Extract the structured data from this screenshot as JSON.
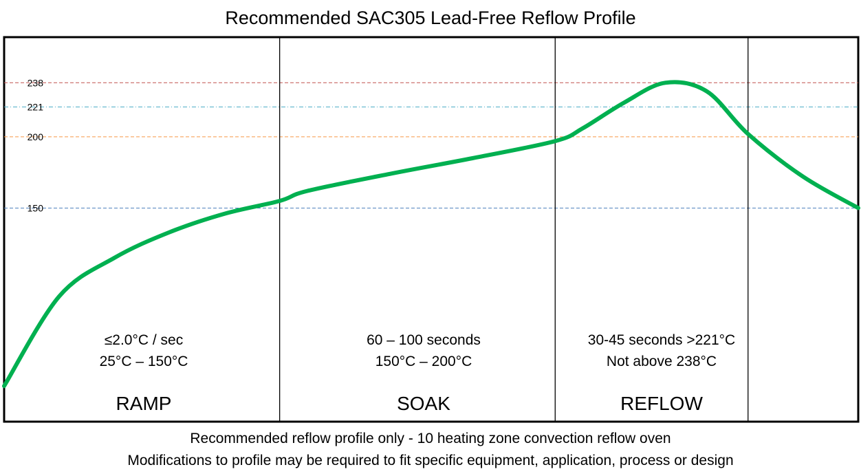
{
  "chart_data": {
    "type": "line",
    "title": "Recommended SAC305 Lead-Free Reflow Profile",
    "xlabel": "",
    "ylabel": "",
    "y_ticks": [
      150,
      200,
      221,
      238
    ],
    "reference_lines": [
      {
        "value": 238,
        "color": "#c0504d",
        "style": "dashed"
      },
      {
        "value": 221,
        "color": "#4bacc6",
        "style": "dash-dot"
      },
      {
        "value": 200,
        "color": "#f79646",
        "style": "dashed"
      },
      {
        "value": 150,
        "color": "#4f81bd",
        "style": "dashed"
      }
    ],
    "series": [
      {
        "color": "#00b050",
        "x": [
          0,
          20,
          40,
          60,
          80,
          100,
          110,
          140,
          170,
          200,
          210,
          225,
          240,
          255,
          270,
          290,
          310
        ],
        "y": [
          25,
          88,
          115,
          133,
          146,
          155,
          162,
          174,
          185,
          197,
          206,
          224,
          238,
          232,
          202,
          172,
          150
        ]
      }
    ],
    "zones": [
      {
        "name": "RAMP",
        "line1": "≤2.0°C / sec",
        "line2": "25°C – 150°C"
      },
      {
        "name": "SOAK",
        "line1": "60 – 100 seconds",
        "line2": "150°C – 200°C"
      },
      {
        "name": "REFLOW",
        "line1": "30-45 seconds >221°C",
        "line2": "Not above 238°C"
      }
    ],
    "zone_boundaries_x": [
      100,
      200,
      270
    ],
    "x_range": [
      0,
      310
    ],
    "y_range": [
      0,
      270
    ],
    "grid": false,
    "legend": "none",
    "footnotes": [
      "Recommended reflow profile only  - 10 heating zone convection reflow oven",
      "Modifications to profile may be required to fit specific equipment, application, process or design"
    ]
  }
}
